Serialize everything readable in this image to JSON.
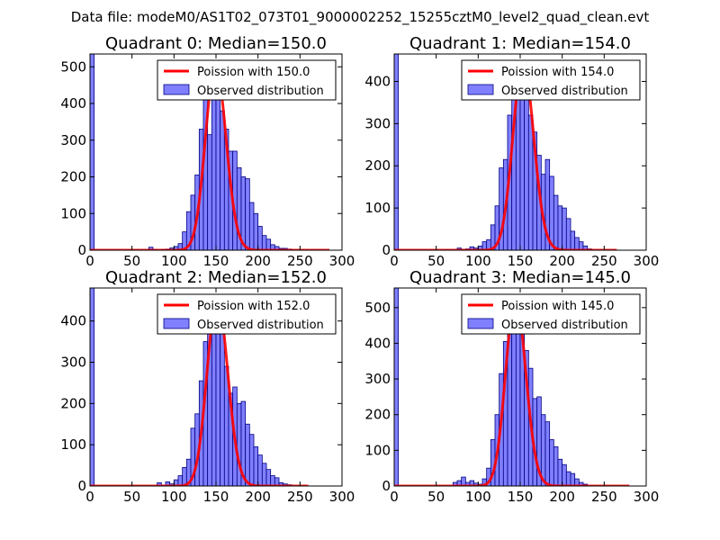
{
  "figure_title": "Data file: modeM0/AS1T02_073T01_9000002252_15255cztM0_level2_quad_clean.evt",
  "colors": {
    "bar_fill": "#8080ff",
    "bar_edge": "#000080",
    "poisson_line": "#ff0000"
  },
  "chart_data": [
    {
      "type": "bar",
      "title": "Quadrant 0: Median=150.0",
      "median": 150.0,
      "xlim": [
        0,
        300
      ],
      "ylim": [
        0,
        535
      ],
      "xticks": [
        0,
        50,
        100,
        150,
        200,
        250,
        300
      ],
      "yticks": [
        0,
        100,
        200,
        300,
        400,
        500
      ],
      "bin_width": 5,
      "bins": [
        [
          0,
          535
        ],
        [
          70,
          8
        ],
        [
          75,
          2
        ],
        [
          85,
          2
        ],
        [
          90,
          3
        ],
        [
          95,
          6
        ],
        [
          100,
          10
        ],
        [
          105,
          18
        ],
        [
          110,
          50
        ],
        [
          115,
          105
        ],
        [
          120,
          150
        ],
        [
          125,
          205
        ],
        [
          130,
          330
        ],
        [
          135,
          420
        ],
        [
          140,
          315
        ],
        [
          145,
          505
        ],
        [
          150,
          445
        ],
        [
          155,
          380
        ],
        [
          160,
          330
        ],
        [
          165,
          270
        ],
        [
          170,
          270
        ],
        [
          175,
          225
        ],
        [
          180,
          200
        ],
        [
          185,
          195
        ],
        [
          190,
          130
        ],
        [
          195,
          100
        ],
        [
          200,
          65
        ],
        [
          205,
          40
        ],
        [
          210,
          30
        ],
        [
          215,
          15
        ],
        [
          220,
          10
        ],
        [
          225,
          5
        ],
        [
          230,
          5
        ],
        [
          235,
          3
        ]
      ],
      "poisson": {
        "lambda": 150.0,
        "x_range": [
          0,
          285
        ]
      },
      "legend": {
        "line_label": "Poission with 150.0",
        "bar_label": "Observed distribution"
      }
    },
    {
      "type": "bar",
      "title": "Quadrant 1: Median=154.0",
      "median": 154.0,
      "xlim": [
        0,
        300
      ],
      "ylim": [
        0,
        465
      ],
      "xticks": [
        0,
        50,
        100,
        150,
        200,
        250,
        300
      ],
      "yticks": [
        0,
        100,
        200,
        300,
        400
      ],
      "bin_width": 5,
      "bins": [
        [
          0,
          465
        ],
        [
          75,
          5
        ],
        [
          80,
          2
        ],
        [
          85,
          3
        ],
        [
          90,
          8
        ],
        [
          95,
          5
        ],
        [
          100,
          10
        ],
        [
          105,
          20
        ],
        [
          110,
          25
        ],
        [
          115,
          60
        ],
        [
          120,
          105
        ],
        [
          125,
          195
        ],
        [
          130,
          215
        ],
        [
          135,
          320
        ],
        [
          140,
          390
        ],
        [
          145,
          445
        ],
        [
          150,
          415
        ],
        [
          155,
          385
        ],
        [
          160,
          320
        ],
        [
          165,
          280
        ],
        [
          170,
          225
        ],
        [
          175,
          180
        ],
        [
          180,
          215
        ],
        [
          185,
          175
        ],
        [
          190,
          130
        ],
        [
          195,
          105
        ],
        [
          200,
          100
        ],
        [
          205,
          75
        ],
        [
          210,
          45
        ],
        [
          215,
          30
        ],
        [
          220,
          20
        ],
        [
          225,
          10
        ],
        [
          230,
          3
        ]
      ],
      "poisson": {
        "lambda": 154.0,
        "x_range": [
          0,
          265
        ]
      },
      "legend": {
        "line_label": "Poission with 154.0",
        "bar_label": "Observed distribution"
      }
    },
    {
      "type": "bar",
      "title": "Quadrant 2: Median=152.0",
      "median": 152.0,
      "xlim": [
        0,
        300
      ],
      "ylim": [
        0,
        480
      ],
      "xticks": [
        0,
        50,
        100,
        150,
        200,
        250,
        300
      ],
      "yticks": [
        0,
        100,
        200,
        300,
        400
      ],
      "bin_width": 5,
      "bins": [
        [
          0,
          480
        ],
        [
          80,
          8
        ],
        [
          85,
          2
        ],
        [
          90,
          10
        ],
        [
          95,
          5
        ],
        [
          100,
          15
        ],
        [
          105,
          25
        ],
        [
          110,
          45
        ],
        [
          115,
          65
        ],
        [
          120,
          140
        ],
        [
          125,
          175
        ],
        [
          130,
          255
        ],
        [
          135,
          350
        ],
        [
          140,
          380
        ],
        [
          145,
          455
        ],
        [
          150,
          430
        ],
        [
          155,
          415
        ],
        [
          160,
          290
        ],
        [
          165,
          225
        ],
        [
          170,
          240
        ],
        [
          175,
          200
        ],
        [
          180,
          205
        ],
        [
          185,
          150
        ],
        [
          190,
          125
        ],
        [
          195,
          95
        ],
        [
          200,
          75
        ],
        [
          205,
          55
        ],
        [
          210,
          40
        ],
        [
          215,
          25
        ],
        [
          220,
          20
        ],
        [
          225,
          8
        ],
        [
          230,
          5
        ],
        [
          235,
          3
        ]
      ],
      "poisson": {
        "lambda": 152.0,
        "x_range": [
          0,
          260
        ]
      },
      "legend": {
        "line_label": "Poission with 152.0",
        "bar_label": "Observed distribution"
      }
    },
    {
      "type": "bar",
      "title": "Quadrant 3: Median=145.0",
      "median": 145.0,
      "xlim": [
        0,
        300
      ],
      "ylim": [
        0,
        555
      ],
      "xticks": [
        0,
        50,
        100,
        150,
        200,
        250,
        300
      ],
      "yticks": [
        0,
        100,
        200,
        300,
        400,
        500
      ],
      "bin_width": 5,
      "bins": [
        [
          0,
          555
        ],
        [
          70,
          10
        ],
        [
          75,
          15
        ],
        [
          80,
          25
        ],
        [
          85,
          10
        ],
        [
          90,
          15
        ],
        [
          95,
          8
        ],
        [
          100,
          5
        ],
        [
          105,
          20
        ],
        [
          110,
          50
        ],
        [
          115,
          130
        ],
        [
          120,
          200
        ],
        [
          125,
          315
        ],
        [
          130,
          405
        ],
        [
          135,
          430
        ],
        [
          140,
          525
        ],
        [
          145,
          450
        ],
        [
          150,
          480
        ],
        [
          155,
          380
        ],
        [
          160,
          330
        ],
        [
          165,
          245
        ],
        [
          170,
          250
        ],
        [
          175,
          200
        ],
        [
          180,
          180
        ],
        [
          185,
          130
        ],
        [
          190,
          110
        ],
        [
          195,
          75
        ],
        [
          200,
          60
        ],
        [
          205,
          40
        ],
        [
          210,
          35
        ],
        [
          215,
          20
        ],
        [
          220,
          10
        ],
        [
          225,
          5
        ]
      ],
      "poisson": {
        "lambda": 145.0,
        "x_range": [
          0,
          280
        ]
      },
      "legend": {
        "line_label": "Poission with 145.0",
        "bar_label": "Observed distribution"
      }
    }
  ]
}
